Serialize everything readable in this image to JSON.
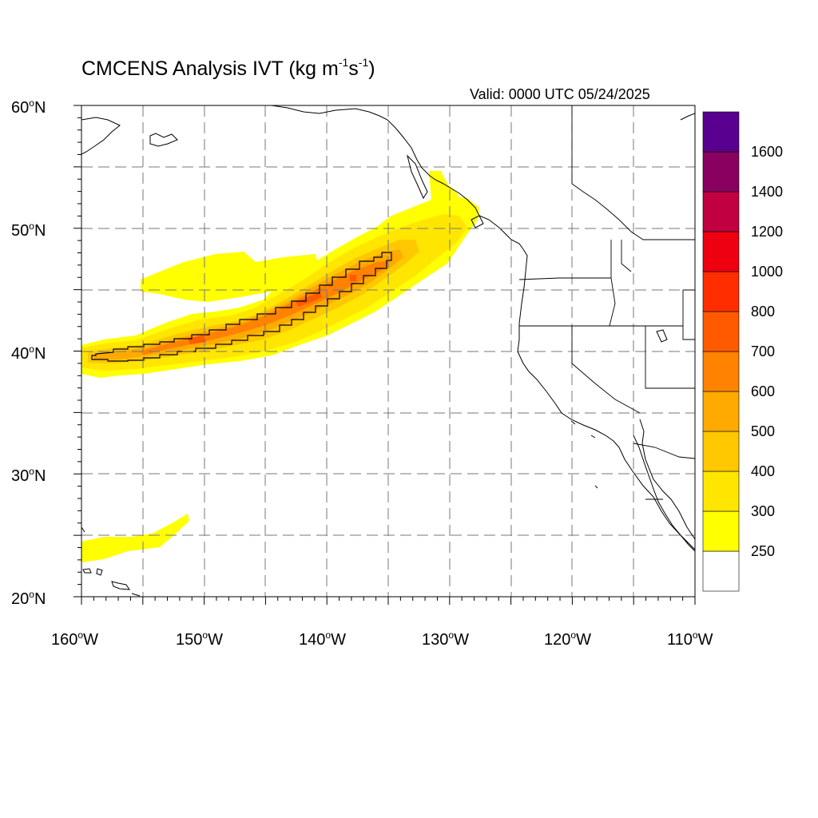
{
  "title": {
    "text": "CMCENS Analysis IVT (kg m",
    "sup1": "-1",
    "mid": "s",
    "sup2": "-1",
    "end": ")"
  },
  "valid": "Valid: 0000 UTC 05/24/2025",
  "lat_labels": [
    {
      "num": "60",
      "deg": "o",
      "hem": "N"
    },
    {
      "num": "50",
      "deg": "o",
      "hem": "N"
    },
    {
      "num": "40",
      "deg": "o",
      "hem": "N"
    },
    {
      "num": "30",
      "deg": "o",
      "hem": "N"
    },
    {
      "num": "20",
      "deg": "o",
      "hem": "N"
    }
  ],
  "lon_labels": [
    {
      "num": "160",
      "deg": "o",
      "hem": "W"
    },
    {
      "num": "150",
      "deg": "o",
      "hem": "W"
    },
    {
      "num": "140",
      "deg": "o",
      "hem": "W"
    },
    {
      "num": "130",
      "deg": "o",
      "hem": "W"
    },
    {
      "num": "120",
      "deg": "o",
      "hem": "W"
    },
    {
      "num": "110",
      "deg": "o",
      "hem": "W"
    }
  ],
  "map_extent": {
    "lon": [
      -160,
      -110
    ],
    "lat": [
      20,
      60
    ]
  },
  "colorbar": {
    "colors": [
      "#ffffff",
      "#ffff00",
      "#ffe600",
      "#ffc800",
      "#ffaa00",
      "#ff8200",
      "#ff5a00",
      "#ff2d00",
      "#ee0011",
      "#c00040",
      "#8a0060",
      "#5a0090"
    ],
    "labels": [
      "250",
      "300",
      "400",
      "500",
      "600",
      "700",
      "800",
      "1000",
      "1200",
      "1400",
      "1600"
    ]
  },
  "ivt_contour_level": 500
}
